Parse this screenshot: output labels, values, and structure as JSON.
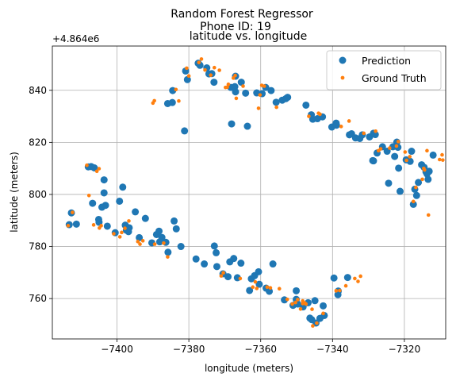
{
  "chart_data": {
    "type": "scatter",
    "title": "Random Forest Regressor",
    "subtitle": "Phone ID: 19",
    "plot_title": "latitude vs. longitude",
    "xlabel": "longitude (meters)",
    "ylabel": "latitude (meters)",
    "offset_label": "+4.864e6",
    "xlim": [
      -7418,
      -7308.5
    ],
    "ylim": [
      744.5,
      857
    ],
    "xticks": [
      -7400,
      -7380,
      -7360,
      -7340,
      -7320
    ],
    "xtick_labels": [
      "−7400",
      "−7380",
      "−7360",
      "−7340",
      "−7320"
    ],
    "yticks": [
      760,
      780,
      800,
      820,
      840
    ],
    "ytick_labels": [
      "760",
      "780",
      "800",
      "820",
      "840"
    ],
    "grid": true,
    "legend_position": "top-right",
    "series": [
      {
        "name": "Prediction",
        "color": "#1f77b4",
        "marker": "large-circle",
        "points": [
          [
            -7413.3,
            788.4
          ],
          [
            -7412.7,
            792.9
          ],
          [
            -7411.3,
            788.6
          ],
          [
            -7408.0,
            810.6
          ],
          [
            -7407.2,
            810.7
          ],
          [
            -7406.3,
            810.2
          ],
          [
            -7406.8,
            796.6
          ],
          [
            -7405.1,
            790.4
          ],
          [
            -7405.0,
            789.3
          ],
          [
            -7404.2,
            795.1
          ],
          [
            -7403.6,
            805.6
          ],
          [
            -7403.6,
            800.6
          ],
          [
            -7403.2,
            795.8
          ],
          [
            -7402.7,
            787.8
          ],
          [
            -7400.5,
            785.3
          ],
          [
            -7399.3,
            797.4
          ],
          [
            -7398.4,
            802.8
          ],
          [
            -7397.7,
            788.2
          ],
          [
            -7397.4,
            786.3
          ],
          [
            -7396.8,
            785.7
          ],
          [
            -7396.6,
            787.2
          ],
          [
            -7394.9,
            793.3
          ],
          [
            -7393.8,
            783.4
          ],
          [
            -7392.1,
            790.8
          ],
          [
            -7390.3,
            781.4
          ],
          [
            -7389.0,
            784.6
          ],
          [
            -7388.3,
            785.9
          ],
          [
            -7388.1,
            781.8
          ],
          [
            -7387.5,
            783.5
          ],
          [
            -7386.4,
            781.6
          ],
          [
            -7385.8,
            777.8
          ],
          [
            -7385.9,
            834.9
          ],
          [
            -7384.6,
            835.3
          ],
          [
            -7384.5,
            839.9
          ],
          [
            -7384.1,
            789.8
          ],
          [
            -7383.5,
            786.8
          ],
          [
            -7382.2,
            780.0
          ],
          [
            -7381.2,
            824.4
          ],
          [
            -7380.4,
            844.1
          ],
          [
            -7380.9,
            847.4
          ],
          [
            -7378.0,
            775.2
          ],
          [
            -7377.4,
            850.4
          ],
          [
            -7376.9,
            849.6
          ],
          [
            -7375.7,
            773.3
          ],
          [
            -7375.0,
            848.6
          ],
          [
            -7374.4,
            846.3
          ],
          [
            -7373.6,
            846.4
          ],
          [
            -7373.0,
            843.1
          ],
          [
            -7372.9,
            780.2
          ],
          [
            -7372.4,
            777.6
          ],
          [
            -7372.2,
            772.3
          ],
          [
            -7370.5,
            769.5
          ],
          [
            -7369.1,
            768.4
          ],
          [
            -7368.6,
            774.1
          ],
          [
            -7368.3,
            841.1
          ],
          [
            -7368.1,
            827.1
          ],
          [
            -7367.5,
            775.4
          ],
          [
            -7367.2,
            841.4
          ],
          [
            -7367.0,
            845.4
          ],
          [
            -7367.0,
            839.4
          ],
          [
            -7366.5,
            768.0
          ],
          [
            -7365.4,
            843.1
          ],
          [
            -7365.5,
            773.6
          ],
          [
            -7364.2,
            838.9
          ],
          [
            -7363.7,
            826.2
          ],
          [
            -7363.1,
            763.1
          ],
          [
            -7362.6,
            767.6
          ],
          [
            -7361.7,
            768.8
          ],
          [
            -7361.1,
            839.0
          ],
          [
            -7360.4,
            765.5
          ],
          [
            -7360.6,
            770.3
          ],
          [
            -7359.6,
            838.7
          ],
          [
            -7358.5,
            764.0
          ],
          [
            -7358.6,
            841.1
          ],
          [
            -7357.6,
            762.8
          ],
          [
            -7357.1,
            839.9
          ],
          [
            -7356.6,
            773.3
          ],
          [
            -7355.7,
            835.4
          ],
          [
            -7354.0,
            836.2
          ],
          [
            -7353.4,
            759.5
          ],
          [
            -7353.0,
            836.8
          ],
          [
            -7352.5,
            837.3
          ],
          [
            -7351.0,
            757.4
          ],
          [
            -7350.1,
            759.7
          ],
          [
            -7350.1,
            763.0
          ],
          [
            -7349.7,
            757.9
          ],
          [
            -7348.2,
            756.8
          ],
          [
            -7347.4,
            834.3
          ],
          [
            -7346.8,
            758.4
          ],
          [
            -7346.3,
            752.5
          ],
          [
            -7345.9,
            830.6
          ],
          [
            -7345.8,
            751.9
          ],
          [
            -7345.5,
            828.9
          ],
          [
            -7344.9,
            759.2
          ],
          [
            -7344.2,
            829.1
          ],
          [
            -7344.6,
            750.6
          ],
          [
            -7343.5,
            752.4
          ],
          [
            -7342.6,
            757.2
          ],
          [
            -7342.8,
            829.8
          ],
          [
            -7342.3,
            753.5
          ],
          [
            -7340.2,
            825.9
          ],
          [
            -7339.6,
            767.9
          ],
          [
            -7339.0,
            827.4
          ],
          [
            -7338.9,
            826.6
          ],
          [
            -7338.4,
            762.9
          ],
          [
            -7338.5,
            761.5
          ],
          [
            -7335.8,
            768.1
          ],
          [
            -7335.3,
            822.9
          ],
          [
            -7334.7,
            823.3
          ],
          [
            -7333.6,
            821.7
          ],
          [
            -7332.4,
            821.5
          ],
          [
            -7331.7,
            822.9
          ],
          [
            -7329.7,
            822.1
          ],
          [
            -7328.6,
            823.5
          ],
          [
            -7328.1,
            823.0
          ],
          [
            -7328.8,
            813.0
          ],
          [
            -7328.6,
            812.9
          ],
          [
            -7327.6,
            815.9
          ],
          [
            -7326.1,
            818.3
          ],
          [
            -7324.8,
            816.6
          ],
          [
            -7324.4,
            804.3
          ],
          [
            -7323.2,
            818.3
          ],
          [
            -7322.7,
            814.6
          ],
          [
            -7322.1,
            820.1
          ],
          [
            -7321.8,
            818.1
          ],
          [
            -7321.6,
            810.1
          ],
          [
            -7321.2,
            801.2
          ],
          [
            -7319.5,
            813.3
          ],
          [
            -7318.4,
            812.7
          ],
          [
            -7318.0,
            816.6
          ],
          [
            -7317.5,
            796.2
          ],
          [
            -7317.1,
            802.0
          ],
          [
            -7316.6,
            799.6
          ],
          [
            -7316.1,
            804.6
          ],
          [
            -7315.2,
            811.4
          ],
          [
            -7314.5,
            810.4
          ],
          [
            -7314.0,
            808.7
          ],
          [
            -7313.7,
            807.9
          ],
          [
            -7313.4,
            805.8
          ],
          [
            -7313.1,
            808.9
          ],
          [
            -7312.0,
            815.1
          ]
        ]
      },
      {
        "name": "Ground Truth",
        "color": "#ff7f0e",
        "marker": "small-dot",
        "points": [
          [
            -7413.6,
            788.0
          ],
          [
            -7412.4,
            793.1
          ],
          [
            -7408.4,
            811.2
          ],
          [
            -7407.8,
            799.6
          ],
          [
            -7406.5,
            788.3
          ],
          [
            -7405.6,
            808.9
          ],
          [
            -7405.0,
            809.9
          ],
          [
            -7404.9,
            787.1
          ],
          [
            -7404.4,
            788.0
          ],
          [
            -7400.9,
            784.9
          ],
          [
            -7399.2,
            783.7
          ],
          [
            -7398.7,
            785.4
          ],
          [
            -7397.8,
            787.0
          ],
          [
            -7396.7,
            789.8
          ],
          [
            -7394.2,
            781.9
          ],
          [
            -7393.6,
            780.9
          ],
          [
            -7392.8,
            782.2
          ],
          [
            -7390.0,
            835.1
          ],
          [
            -7389.6,
            836.0
          ],
          [
            -7389.5,
            780.9
          ],
          [
            -7387.0,
            781.3
          ],
          [
            -7385.9,
            776.0
          ],
          [
            -7383.6,
            840.3
          ],
          [
            -7382.8,
            835.9
          ],
          [
            -7380.6,
            848.5
          ],
          [
            -7380.0,
            845.5
          ],
          [
            -7377.2,
            850.7
          ],
          [
            -7376.5,
            852.0
          ],
          [
            -7375.5,
            847.8
          ],
          [
            -7373.9,
            845.8
          ],
          [
            -7372.9,
            848.7
          ],
          [
            -7371.5,
            847.7
          ],
          [
            -7371.0,
            768.7
          ],
          [
            -7370.4,
            769.9
          ],
          [
            -7369.8,
            841.1
          ],
          [
            -7369.3,
            841.2
          ],
          [
            -7369.0,
            842.3
          ],
          [
            -7367.6,
            844.7
          ],
          [
            -7367.1,
            845.7
          ],
          [
            -7366.8,
            836.9
          ],
          [
            -7365.7,
            767.7
          ],
          [
            -7364.9,
            841.6
          ],
          [
            -7362.2,
            764.4
          ],
          [
            -7361.5,
            766.4
          ],
          [
            -7361.1,
            763.9
          ],
          [
            -7360.6,
            833.1
          ],
          [
            -7360.2,
            838.2
          ],
          [
            -7359.7,
            841.9
          ],
          [
            -7359.0,
            841.6
          ],
          [
            -7358.2,
            764.4
          ],
          [
            -7357.3,
            764.1
          ],
          [
            -7355.6,
            833.5
          ],
          [
            -7354.8,
            763.8
          ],
          [
            -7352.6,
            759.7
          ],
          [
            -7351.2,
            757.9
          ],
          [
            -7350.3,
            758.5
          ],
          [
            -7349.7,
            759.6
          ],
          [
            -7348.9,
            756.0
          ],
          [
            -7348.3,
            758.1
          ],
          [
            -7348.3,
            759.1
          ],
          [
            -7347.7,
            758.3
          ],
          [
            -7347.4,
            757.9
          ],
          [
            -7346.6,
            830.0
          ],
          [
            -7345.7,
            755.9
          ],
          [
            -7345.5,
            749.5
          ],
          [
            -7344.4,
            750.6
          ],
          [
            -7343.9,
            831.2
          ],
          [
            -7343.5,
            830.8
          ],
          [
            -7342.6,
            754.3
          ],
          [
            -7339.0,
            763.0
          ],
          [
            -7338.0,
            763.1
          ],
          [
            -7337.6,
            826.1
          ],
          [
            -7336.3,
            764.9
          ],
          [
            -7335.4,
            828.2
          ],
          [
            -7333.8,
            767.7
          ],
          [
            -7332.9,
            766.6
          ],
          [
            -7332.2,
            768.6
          ],
          [
            -7331.3,
            823.5
          ],
          [
            -7328.0,
            824.3
          ],
          [
            -7327.2,
            816.8
          ],
          [
            -7326.6,
            817.5
          ],
          [
            -7324.1,
            817.8
          ],
          [
            -7322.2,
            818.6
          ],
          [
            -7321.7,
            820.3
          ],
          [
            -7319.8,
            816.3
          ],
          [
            -7319.4,
            813.1
          ],
          [
            -7318.5,
            814.5
          ],
          [
            -7317.5,
            797.3
          ],
          [
            -7316.8,
            802.7
          ],
          [
            -7315.0,
            805.8
          ],
          [
            -7314.6,
            810.0
          ],
          [
            -7314.4,
            809.4
          ],
          [
            -7313.7,
            816.8
          ],
          [
            -7313.3,
            792.1
          ],
          [
            -7310.2,
            813.4
          ],
          [
            -7309.5,
            815.2
          ],
          [
            -7309.3,
            813.2
          ]
        ]
      }
    ]
  }
}
